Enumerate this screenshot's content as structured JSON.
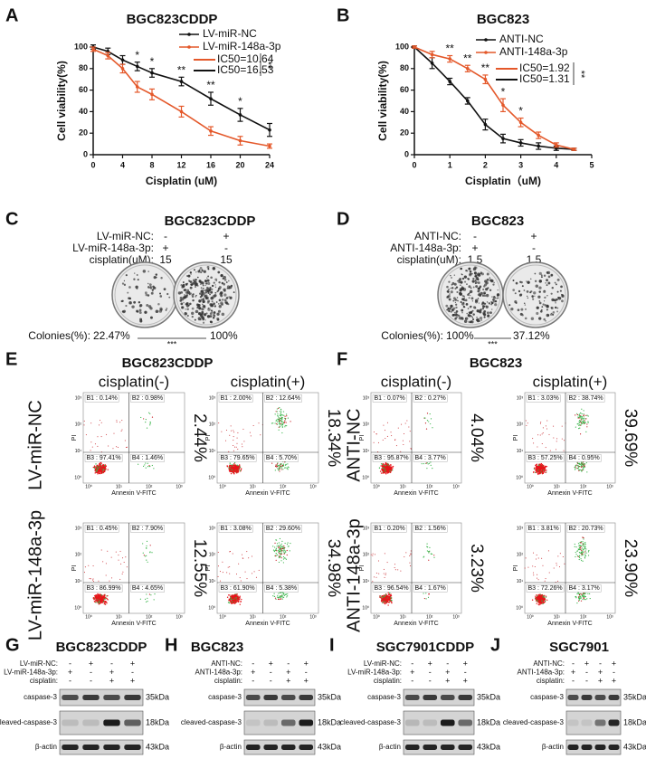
{
  "chart_data": [
    {
      "type": "line",
      "label": "A",
      "title": "BGC823CDDP",
      "x_label": "Cisplatin (uM)",
      "y_label": "Cell viability(%)",
      "x": [
        0,
        2,
        4,
        6,
        8,
        12,
        16,
        20,
        24
      ],
      "series": [
        {
          "name": "LV-miR-NC",
          "color": "#111111",
          "values": [
            100,
            96,
            88,
            82,
            76,
            68,
            52,
            37,
            23
          ],
          "errors": [
            2,
            3,
            4,
            4,
            4,
            4,
            6,
            6,
            6
          ]
        },
        {
          "name": "LV-miR-148a-3p",
          "color": "#e4582a",
          "values": [
            98,
            92,
            80,
            63,
            56,
            40,
            22,
            13,
            8
          ],
          "errors": [
            2,
            3,
            4,
            5,
            5,
            5,
            4,
            4,
            2
          ]
        }
      ],
      "xlim": [
        0,
        24
      ],
      "xticks": [
        0,
        4,
        8,
        12,
        16,
        20,
        24
      ],
      "ylim": [
        0,
        100
      ],
      "yticks": [
        0,
        20,
        40,
        60,
        80,
        100
      ],
      "legend": "upper right",
      "ic50": [
        {
          "label": "IC50=10.64",
          "color": "#e4582a"
        },
        {
          "label": "IC50=16.53",
          "color": "#111111"
        }
      ],
      "ic50_significance": "**",
      "annotations": [
        {
          "x": 6,
          "text": "*"
        },
        {
          "x": 8,
          "text": "*"
        },
        {
          "x": 12,
          "text": "**"
        },
        {
          "x": 16,
          "text": "**"
        },
        {
          "x": 20,
          "text": "*"
        }
      ]
    },
    {
      "type": "line",
      "label": "B",
      "title": "BGC823",
      "x_label": "Cisplatin（uM)",
      "y_label": "Cell viability(%)",
      "x": [
        0,
        0.5,
        1,
        1.5,
        2,
        2.5,
        3,
        3.5,
        4,
        4.5
      ],
      "series": [
        {
          "name": "ANTI-NC",
          "color": "#111111",
          "values": [
            100,
            85,
            68,
            50,
            28,
            15,
            11,
            8,
            6,
            5
          ],
          "errors": [
            1,
            5,
            3,
            3,
            5,
            4,
            3,
            3,
            2,
            1
          ]
        },
        {
          "name": "ANTI-148a-3p",
          "color": "#e4582a",
          "values": [
            100,
            93,
            89,
            80,
            70,
            46,
            30,
            18,
            9,
            5
          ],
          "errors": [
            1,
            3,
            3,
            3,
            4,
            6,
            4,
            3,
            2,
            1
          ]
        }
      ],
      "xlim": [
        0,
        5
      ],
      "xticks": [
        0,
        1,
        2,
        3,
        4,
        5
      ],
      "ylim": [
        0,
        100
      ],
      "yticks": [
        0,
        20,
        40,
        60,
        80,
        100
      ],
      "legend": "upper right",
      "ic50": [
        {
          "label": "IC50=1.92",
          "color": "#e4582a"
        },
        {
          "label": "IC50=1.31",
          "color": "#111111"
        }
      ],
      "ic50_significance": "**",
      "annotations": [
        {
          "x": 1,
          "text": "**"
        },
        {
          "x": 1.5,
          "text": "**"
        },
        {
          "x": 2,
          "text": "**"
        },
        {
          "x": 2.5,
          "text": "*"
        },
        {
          "x": 3,
          "text": "*"
        }
      ]
    }
  ],
  "colony": [
    {
      "label": "C",
      "title": "BGC823CDDP",
      "rows": [
        {
          "name": "LV-miR-NC:",
          "values": [
            "-",
            "+"
          ]
        },
        {
          "name": "LV-miR-148a-3p:",
          "values": [
            "+",
            "-"
          ]
        },
        {
          "name": "cisplatin(uM):",
          "values": [
            "15",
            "15"
          ]
        }
      ],
      "colonies_label": "Colonies(%):",
      "colonies": [
        "22.47%",
        "100%"
      ],
      "significance": "***"
    },
    {
      "label": "D",
      "title": "BGC823",
      "rows": [
        {
          "name": "ANTI-NC:",
          "values": [
            "-",
            "+"
          ]
        },
        {
          "name": "ANTI-148a-3p:",
          "values": [
            "+",
            "-"
          ]
        },
        {
          "name": "cisplatin(uM):",
          "values": [
            "1.5",
            "1.5"
          ]
        }
      ],
      "colonies_label": "Colonies(%):",
      "colonies": [
        "100%",
        "37.12%"
      ],
      "significance": "***"
    }
  ],
  "flow": [
    {
      "label": "E",
      "title": "BGC823CDDP",
      "columns": [
        "cisplatin(-)",
        "cisplatin(+)"
      ],
      "rows": [
        "LV-miR-NC",
        "LV-miR-148a-3p"
      ],
      "x_axis": "Annexin V-FITC",
      "y_axis": "PI",
      "ticks": [
        "10⁰",
        "10¹",
        "10²",
        "10³"
      ],
      "plots": [
        [
          {
            "quadrants": [
              "B1 : 0.14%",
              "B2 : 0.98%",
              "B3 : 97.41%",
              "B4 : 1.46%"
            ],
            "total": "2.44%"
          },
          {
            "quadrants": [
              "B1 : 2.00%",
              "B2 : 12.64%",
              "B3 : 79.65%",
              "B4 : 5.70%"
            ],
            "total": "18.34%"
          }
        ],
        [
          {
            "quadrants": [
              "B1 : 0.45%",
              "B2 : 7.90%",
              "B3 : 86.99%",
              "B4 : 4.65%"
            ],
            "total": "12.55%"
          },
          {
            "quadrants": [
              "B1 : 3.08%",
              "B2 : 29.60%",
              "B3 : 61.90%",
              "B4 : 5.38%"
            ],
            "total": "34.98%"
          }
        ]
      ]
    },
    {
      "label": "F",
      "title": "BGC823",
      "columns": [
        "cisplatin(-)",
        "cisplatin(+)"
      ],
      "rows": [
        "ANTI-NC",
        "ANTI-148a-3p"
      ],
      "x_axis": "Annexin V-FITC",
      "y_axis": "PI",
      "ticks": [
        "10⁰",
        "10¹",
        "10²",
        "10³"
      ],
      "plots": [
        [
          {
            "quadrants": [
              "B1 : 0.07%",
              "B2 : 0.27%",
              "B3 : 95.87%",
              "B4 : 3.77%"
            ],
            "total": "4.04%"
          },
          {
            "quadrants": [
              "B1 : 3.03%",
              "B2 : 38.74%",
              "B3 : 57.25%",
              "B4 : 0.95%"
            ],
            "total": "39.69%"
          }
        ],
        [
          {
            "quadrants": [
              "B1 : 0.20%",
              "B2 : 1.56%",
              "B3 : 96.54%",
              "B4 : 1.67%"
            ],
            "total": "3.23%"
          },
          {
            "quadrants": [
              "B1 : 3.81%",
              "B2 : 20.73%",
              "B3 : 72.26%",
              "B4 : 3.17%"
            ],
            "total": "23.90%"
          }
        ]
      ]
    }
  ],
  "blots": [
    {
      "label": "G",
      "title": "BGC823CDDP",
      "conditions": [
        {
          "name": "LV-miR-NC:",
          "values": [
            "-",
            "+",
            "-",
            "+"
          ]
        },
        {
          "name": "LV-miR-148a-3p:",
          "values": [
            "+",
            "-",
            "+",
            "-"
          ]
        },
        {
          "name": "cisplatin:",
          "values": [
            "-",
            "-",
            "+",
            "+"
          ]
        }
      ],
      "bands": [
        {
          "name": "caspase-3",
          "size": "35kDa"
        },
        {
          "name": "cleaved-caspase-3",
          "size": "18kDa"
        },
        {
          "name": "β-actin",
          "size": "43kDa"
        }
      ]
    },
    {
      "label": "H",
      "title": "BGC823",
      "conditions": [
        {
          "name": "ANTI-NC:",
          "values": [
            "-",
            "+",
            "-",
            "+"
          ]
        },
        {
          "name": "ANTI-148a-3p:",
          "values": [
            "+",
            "-",
            "+",
            "-"
          ]
        },
        {
          "name": "cisplatin:",
          "values": [
            "-",
            "-",
            "+",
            "+"
          ]
        }
      ],
      "bands": [
        {
          "name": "caspase-3",
          "size": "35kDa"
        },
        {
          "name": "cleaved-caspase-3",
          "size": "18kDa"
        },
        {
          "name": "β-actin",
          "size": "43kDa"
        }
      ]
    },
    {
      "label": "I",
      "title": "SGC7901CDDP",
      "conditions": [
        {
          "name": "LV-miR-NC:",
          "values": [
            "-",
            "+",
            "-",
            "+"
          ]
        },
        {
          "name": "LV-miR-148a-3p:",
          "values": [
            "+",
            "-",
            "+",
            "-"
          ]
        },
        {
          "name": "cisplatin:",
          "values": [
            "-",
            "-",
            "+",
            "+"
          ]
        }
      ],
      "bands": [
        {
          "name": "caspase-3",
          "size": "35kDa"
        },
        {
          "name": "cleaved-caspase-3",
          "size": "18kDa"
        },
        {
          "name": "β-actin",
          "size": "43kDa"
        }
      ]
    },
    {
      "label": "J",
      "title": "SGC7901",
      "conditions": [
        {
          "name": "ANTI-NC:",
          "values": [
            "-",
            "+",
            "-",
            "+"
          ]
        },
        {
          "name": "ANTI-148a-3p:",
          "values": [
            "+",
            "-",
            "+",
            "-"
          ]
        },
        {
          "name": "cisplatin:",
          "values": [
            "-",
            "-",
            "+",
            "+"
          ]
        }
      ],
      "bands": [
        {
          "name": "caspase-3",
          "size": "35kDa"
        },
        {
          "name": "cleaved-caspase-3",
          "size": "18kDa"
        },
        {
          "name": "β-actin",
          "size": "43kDa"
        }
      ]
    }
  ]
}
